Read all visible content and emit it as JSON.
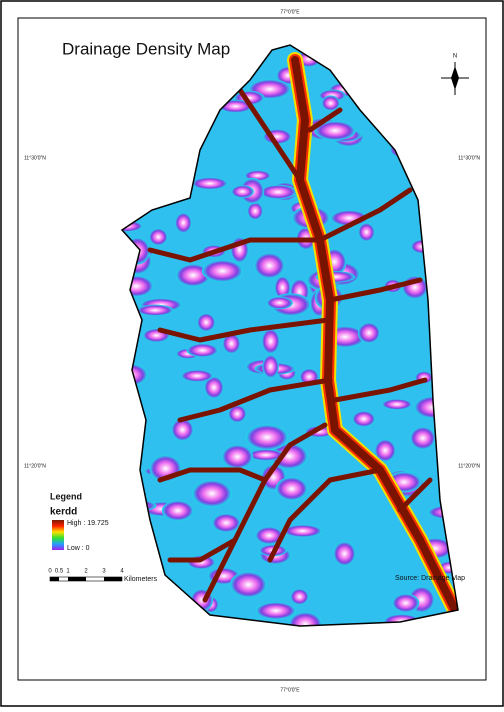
{
  "map": {
    "title": "Drainage Density Map",
    "north_label": "N",
    "coordinate_labels": {
      "top": "77°0'0\"E",
      "bottom": "77°0'0\"E",
      "left_upper": "11°30'0\"N",
      "left_lower": "11°20'0\"N",
      "right_upper": "11°30'0\"N",
      "right_lower": "11°20'0\"N"
    },
    "legend": {
      "title": "Legend",
      "layer": "kerdd",
      "high": "High : 19.725",
      "low": "Low : 0"
    },
    "scale_bar": {
      "ticks": [
        "0",
        "0.5",
        "1",
        "2",
        "3",
        "4"
      ],
      "unit": "Kilometers"
    },
    "source": "Source: Drainage Map"
  }
}
